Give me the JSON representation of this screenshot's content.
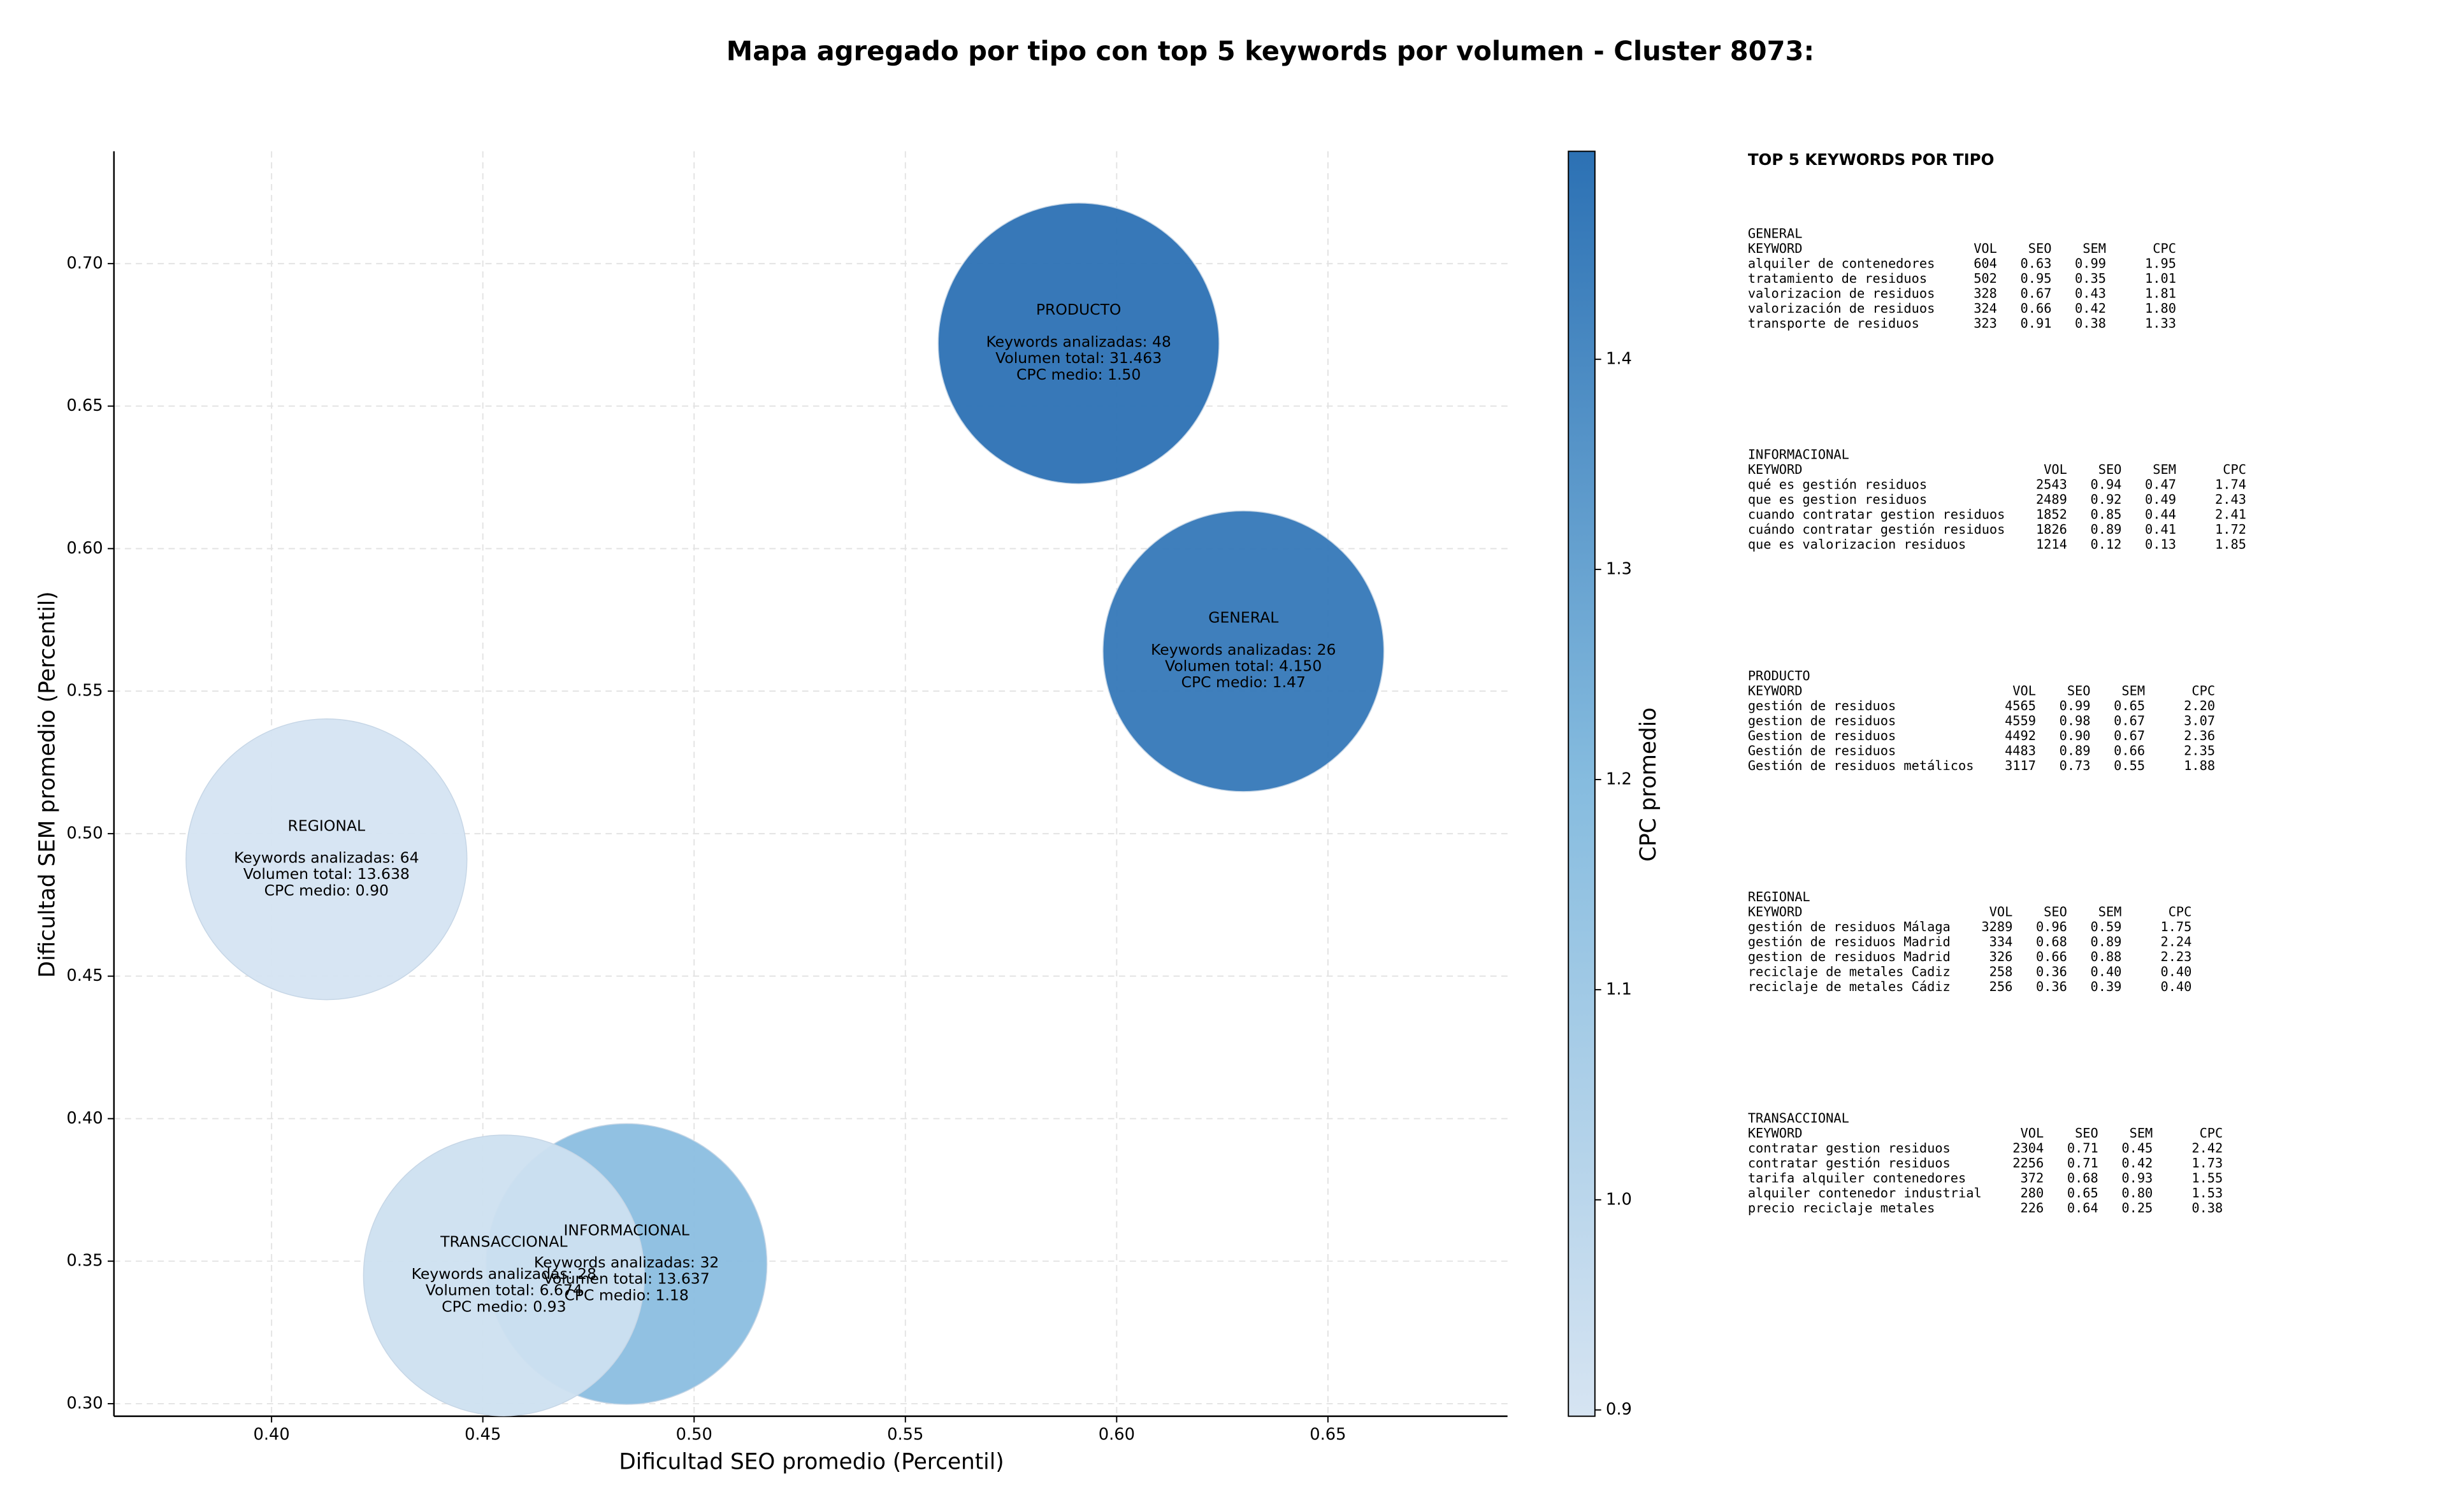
{
  "chart_data": {
    "type": "scatter",
    "title": "Mapa agregado por tipo con top 5 keywords por volumen - Cluster 8073:",
    "xlabel": "Dificultad SEO promedio (Percentil)",
    "ylabel": "Dificultad SEM promedio (Percentil)",
    "colorbar_label": "CPC promedio",
    "xlim": [
      0.3627,
      0.6925
    ],
    "ylim": [
      0.2956,
      0.7394
    ],
    "xticks": [
      {
        "value": 0.4,
        "label": "0.40"
      },
      0.45,
      {
        "value": 0.5,
        "label": "0.50"
      },
      0.55,
      {
        "value": 0.6,
        "label": "0.60"
      },
      0.65
    ],
    "yticks": [
      {
        "value": 0.3,
        "label": "0.30"
      },
      0.35,
      {
        "value": 0.4,
        "label": "0.40"
      },
      0.45,
      {
        "value": 0.5,
        "label": "0.50"
      },
      0.55,
      {
        "value": 0.6,
        "label": "0.60"
      },
      0.65,
      {
        "value": 0.7,
        "label": "0.70"
      }
    ],
    "clim": [
      0.897,
      1.499
    ],
    "cticks": [
      0.9,
      {
        "value": 1.0,
        "label": "1.0"
      },
      1.1,
      1.2,
      1.3,
      1.4
    ],
    "colormap": [
      "#d6e4f2",
      "#86bcdf",
      "#2c71b4"
    ],
    "grid": true,
    "points": [
      {
        "name": "PRODUCTO",
        "x": 0.591,
        "y": 0.672,
        "cpc": 1.5,
        "lines": [
          "Keywords analizadas: 48",
          "Volumen total: 31.463",
          "CPC medio: 1.50"
        ]
      },
      {
        "name": "GENERAL",
        "x": 0.63,
        "y": 0.564,
        "cpc": 1.47,
        "lines": [
          "Keywords analizadas: 26",
          "Volumen total: 4.150",
          "CPC medio: 1.47"
        ]
      },
      {
        "name": "REGIONAL",
        "x": 0.413,
        "y": 0.491,
        "cpc": 0.9,
        "lines": [
          "Keywords analizadas: 64",
          "Volumen total: 13.638",
          "CPC medio: 0.90"
        ]
      },
      {
        "name": "INFORMACIONAL",
        "x": 0.484,
        "y": 0.349,
        "cpc": 1.18,
        "lines": [
          "Keywords analizadas: 32",
          "Volumen total: 13.637",
          "CPC medio: 1.18"
        ]
      },
      {
        "name": "TRANSACCIONAL",
        "x": 0.455,
        "y": 0.345,
        "cpc": 0.93,
        "lines": [
          "Keywords analizadas: 28",
          "Volumen total: 6.674",
          "CPC medio: 0.93"
        ]
      }
    ]
  },
  "keyword_tables": {
    "title": "TOP 5 KEYWORDS POR TIPO",
    "groups": [
      {
        "name": "GENERAL",
        "header": [
          "KEYWORD",
          "VOL",
          "SEO",
          "SEM",
          "CPC"
        ],
        "rows": [
          [
            "alquiler de contenedores",
            "604",
            "0.63",
            "0.99",
            "1.95"
          ],
          [
            "tratamiento de residuos",
            "502",
            "0.95",
            "0.35",
            "1.01"
          ],
          [
            "valorizacion de residuos",
            "328",
            "0.67",
            "0.43",
            "1.81"
          ],
          [
            "valorización de residuos",
            "324",
            "0.66",
            "0.42",
            "1.80"
          ],
          [
            "transporte de residuos",
            "323",
            "0.91",
            "0.38",
            "1.33"
          ]
        ]
      },
      {
        "name": "INFORMACIONAL",
        "header": [
          "KEYWORD",
          "VOL",
          "SEO",
          "SEM",
          "CPC"
        ],
        "rows": [
          [
            "qué es gestión residuos",
            "2543",
            "0.94",
            "0.47",
            "1.74"
          ],
          [
            "que es gestion residuos",
            "2489",
            "0.92",
            "0.49",
            "2.43"
          ],
          [
            "cuando contratar gestion residuos",
            "1852",
            "0.85",
            "0.44",
            "2.41"
          ],
          [
            "cuándo contratar gestión residuos",
            "1826",
            "0.89",
            "0.41",
            "1.72"
          ],
          [
            "que es valorizacion residuos",
            "1214",
            "0.12",
            "0.13",
            "1.85"
          ]
        ]
      },
      {
        "name": "PRODUCTO",
        "header": [
          "KEYWORD",
          "VOL",
          "SEO",
          "SEM",
          "CPC"
        ],
        "rows": [
          [
            "gestión de residuos",
            "4565",
            "0.99",
            "0.65",
            "2.20"
          ],
          [
            "gestion de residuos",
            "4559",
            "0.98",
            "0.67",
            "3.07"
          ],
          [
            "Gestion de residuos",
            "4492",
            "0.90",
            "0.67",
            "2.36"
          ],
          [
            "Gestión de residuos",
            "4483",
            "0.89",
            "0.66",
            "2.35"
          ],
          [
            "Gestión de residuos metálicos",
            "3117",
            "0.73",
            "0.55",
            "1.88"
          ]
        ]
      },
      {
        "name": "REGIONAL",
        "header": [
          "KEYWORD",
          "VOL",
          "SEO",
          "SEM",
          "CPC"
        ],
        "rows": [
          [
            "gestión de residuos Málaga",
            "3289",
            "0.96",
            "0.59",
            "1.75"
          ],
          [
            "gestión de residuos Madrid",
            "334",
            "0.68",
            "0.89",
            "2.24"
          ],
          [
            "gestion de residuos Madrid",
            "326",
            "0.66",
            "0.88",
            "2.23"
          ],
          [
            "reciclaje de metales Cadiz",
            "258",
            "0.36",
            "0.40",
            "0.40"
          ],
          [
            "reciclaje de metales Cádiz",
            "256",
            "0.36",
            "0.39",
            "0.40"
          ]
        ]
      },
      {
        "name": "TRANSACCIONAL",
        "header": [
          "KEYWORD",
          "VOL",
          "SEO",
          "SEM",
          "CPC"
        ],
        "rows": [
          [
            "contratar gestion residuos",
            "2304",
            "0.71",
            "0.45",
            "2.42"
          ],
          [
            "contratar gestión residuos",
            "2256",
            "0.71",
            "0.42",
            "1.73"
          ],
          [
            "tarifa alquiler contenedores",
            "372",
            "0.68",
            "0.93",
            "1.55"
          ],
          [
            "alquiler contenedor industrial",
            "280",
            "0.65",
            "0.80",
            "1.53"
          ],
          [
            "precio reciclaje metales",
            "226",
            "0.64",
            "0.25",
            "0.38"
          ]
        ]
      }
    ]
  }
}
